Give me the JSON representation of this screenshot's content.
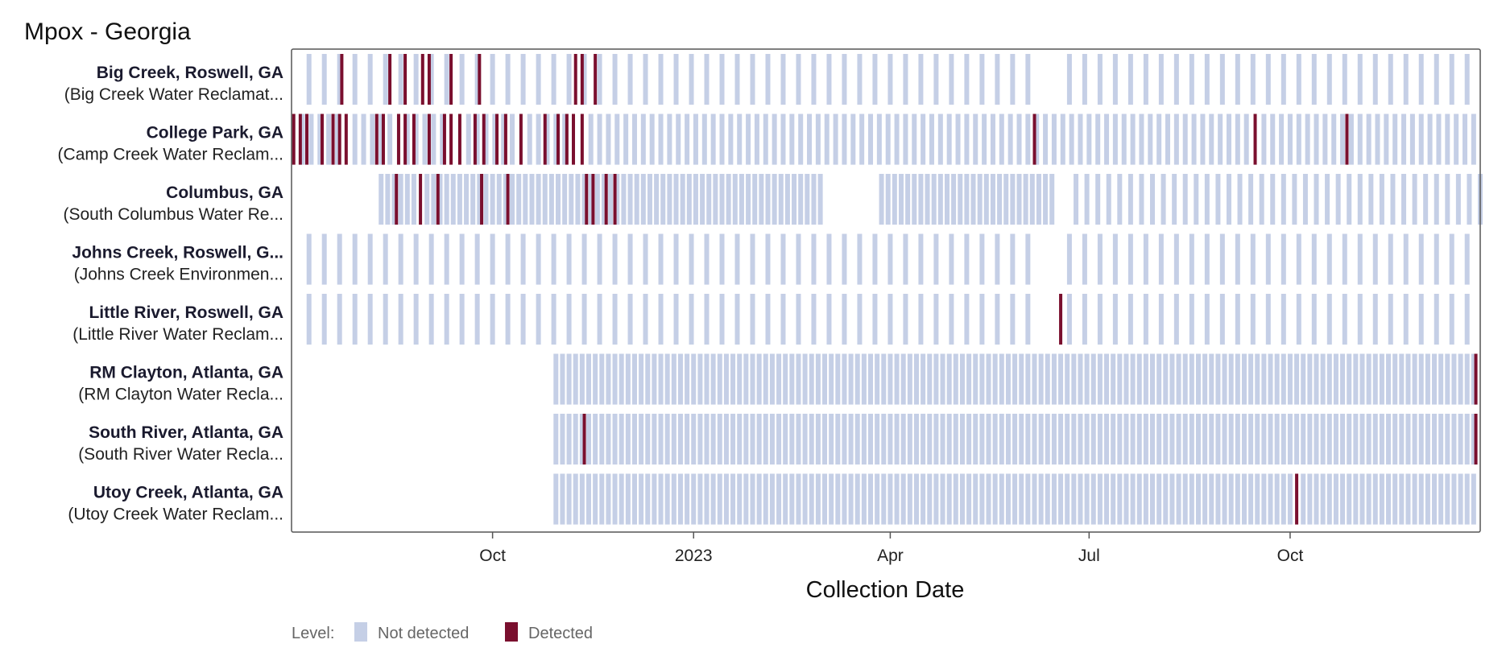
{
  "chart_data": {
    "type": "heatmap",
    "title": "Mpox - Georgia",
    "xlabel": "Collection Date",
    "ylabel": "",
    "x_type": "date",
    "xlim": [
      "2022-07-01",
      "2023-12-27"
    ],
    "x_ticks": [
      {
        "date": "2022-10-01",
        "label": "Oct"
      },
      {
        "date": "2023-01-01",
        "label": "2023"
      },
      {
        "date": "2023-04-01",
        "label": "Apr"
      },
      {
        "date": "2023-07-01",
        "label": "Jul"
      },
      {
        "date": "2023-10-01",
        "label": "Oct"
      }
    ],
    "legend": {
      "title": "Level:",
      "position": "bottom-left",
      "entries": [
        {
          "label": "Not detected",
          "color": "#c5cfe6"
        },
        {
          "label": "Detected",
          "color": "#7a0f2e"
        }
      ]
    },
    "colors": {
      "not_detected": "#c5cfe6",
      "detected": "#7a0f2e",
      "frame": "#555555"
    },
    "sites": [
      {
        "site": "Big Creek, Roswell, GA",
        "plant": "(Big Creek Water Reclamat...",
        "segments": [
          {
            "start": "2022-07-09",
            "end": "2023-06-08",
            "interval_days": 7
          },
          {
            "start": "2023-06-22",
            "end": "2023-12-26",
            "interval_days": 7
          }
        ],
        "detected": [
          "2022-07-24",
          "2022-08-15",
          "2022-08-22",
          "2022-08-30",
          "2022-09-02",
          "2022-09-12",
          "2022-09-25",
          "2022-11-08",
          "2022-11-11",
          "2022-11-17"
        ]
      },
      {
        "site": "College Park, GA",
        "plant": "(Camp Creek Water Reclam...",
        "segments": [
          {
            "start": "2022-07-02",
            "end": "2023-12-26",
            "interval_days": 4
          }
        ],
        "detected": [
          "2022-07-02",
          "2022-07-05",
          "2022-07-08",
          "2022-07-15",
          "2022-07-20",
          "2022-07-23",
          "2022-07-26",
          "2022-08-09",
          "2022-08-12",
          "2022-08-19",
          "2022-08-22",
          "2022-08-26",
          "2022-09-02",
          "2022-09-09",
          "2022-09-12",
          "2022-09-16",
          "2022-09-23",
          "2022-09-27",
          "2022-10-03",
          "2022-10-07",
          "2022-10-14",
          "2022-10-25",
          "2022-10-31",
          "2022-11-04",
          "2022-11-07",
          "2022-11-11",
          "2023-06-06",
          "2023-09-15",
          "2023-10-27"
        ]
      },
      {
        "site": "Columbus, GA",
        "plant": "(South Columbus Water Re...",
        "segments": [
          {
            "start": "2022-08-11",
            "end": "2023-02-28",
            "interval_days": 3
          },
          {
            "start": "2023-03-28",
            "end": "2023-06-15",
            "interval_days": 3
          },
          {
            "start": "2023-06-25",
            "end": "2023-12-27",
            "interval_days": 5
          }
        ],
        "detected": [
          "2022-08-18",
          "2022-08-29",
          "2022-09-06",
          "2022-09-26",
          "2022-10-08",
          "2022-11-13",
          "2022-11-16",
          "2022-11-22",
          "2022-11-26"
        ]
      },
      {
        "site": "Johns Creek, Roswell, G...",
        "plant": "(Johns Creek Environmen...",
        "segments": [
          {
            "start": "2022-07-09",
            "end": "2023-06-08",
            "interval_days": 7
          },
          {
            "start": "2023-06-22",
            "end": "2023-12-26",
            "interval_days": 7
          }
        ],
        "detected": []
      },
      {
        "site": "Little River, Roswell, GA",
        "plant": "(Little River Water Reclam...",
        "segments": [
          {
            "start": "2022-07-09",
            "end": "2023-06-08",
            "interval_days": 7
          },
          {
            "start": "2023-06-22",
            "end": "2023-12-26",
            "interval_days": 7
          }
        ],
        "detected": [
          "2023-06-18"
        ]
      },
      {
        "site": "RM Clayton, Atlanta, GA",
        "plant": "(RM Clayton Water Recla...",
        "segments": [
          {
            "start": "2022-10-30",
            "end": "2023-12-26",
            "interval_days": 3
          }
        ],
        "detected": [
          "2023-12-25"
        ]
      },
      {
        "site": "South River, Atlanta, GA",
        "plant": "(South River Water Recla...",
        "segments": [
          {
            "start": "2022-10-30",
            "end": "2023-12-26",
            "interval_days": 3
          }
        ],
        "detected": [
          "2022-11-12",
          "2023-12-25"
        ]
      },
      {
        "site": "Utoy Creek, Atlanta, GA",
        "plant": "(Utoy Creek Water Reclam...",
        "segments": [
          {
            "start": "2022-10-30",
            "end": "2023-12-26",
            "interval_days": 3
          }
        ],
        "detected": [
          "2023-10-04"
        ]
      }
    ]
  }
}
